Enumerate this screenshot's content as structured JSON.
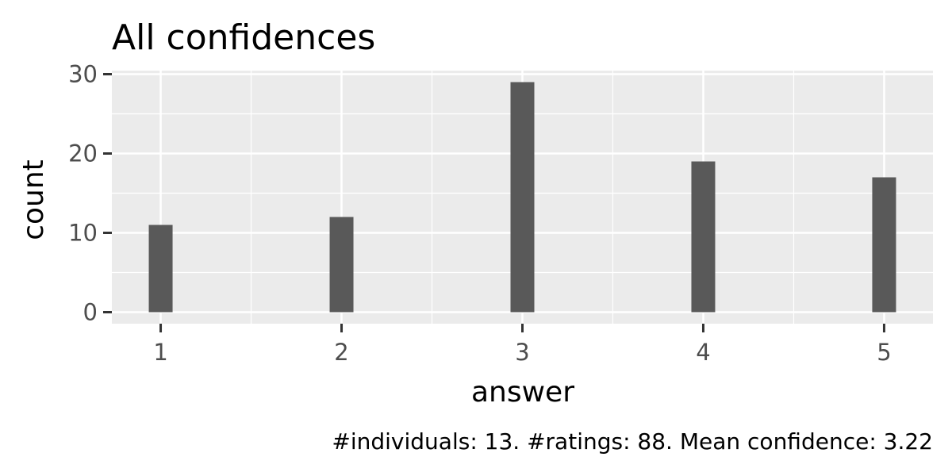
{
  "chart_data": {
    "type": "bar",
    "title": "All confidences",
    "xlabel": "answer",
    "ylabel": "count",
    "caption": "#individuals: 13. #ratings: 88. Mean confidence: 3.22",
    "x": [
      1,
      2,
      3,
      4,
      5
    ],
    "values": [
      11,
      12,
      29,
      19,
      17
    ],
    "x_tick_labels": [
      "1",
      "2",
      "3",
      "4",
      "5"
    ],
    "y_ticks": [
      0,
      10,
      20,
      30
    ],
    "y_tick_labels": [
      "0",
      "10",
      "20",
      "30"
    ],
    "xlim": [
      0.73,
      5.27
    ],
    "ylim": [
      -1.45,
      30.45
    ],
    "grid": true,
    "legend": "none",
    "colors": {
      "bar": "#595959",
      "panel": "#ebebeb",
      "grid": "#ffffff",
      "tick_label": "#4d4d4d",
      "tick_mark": "#333333"
    }
  }
}
